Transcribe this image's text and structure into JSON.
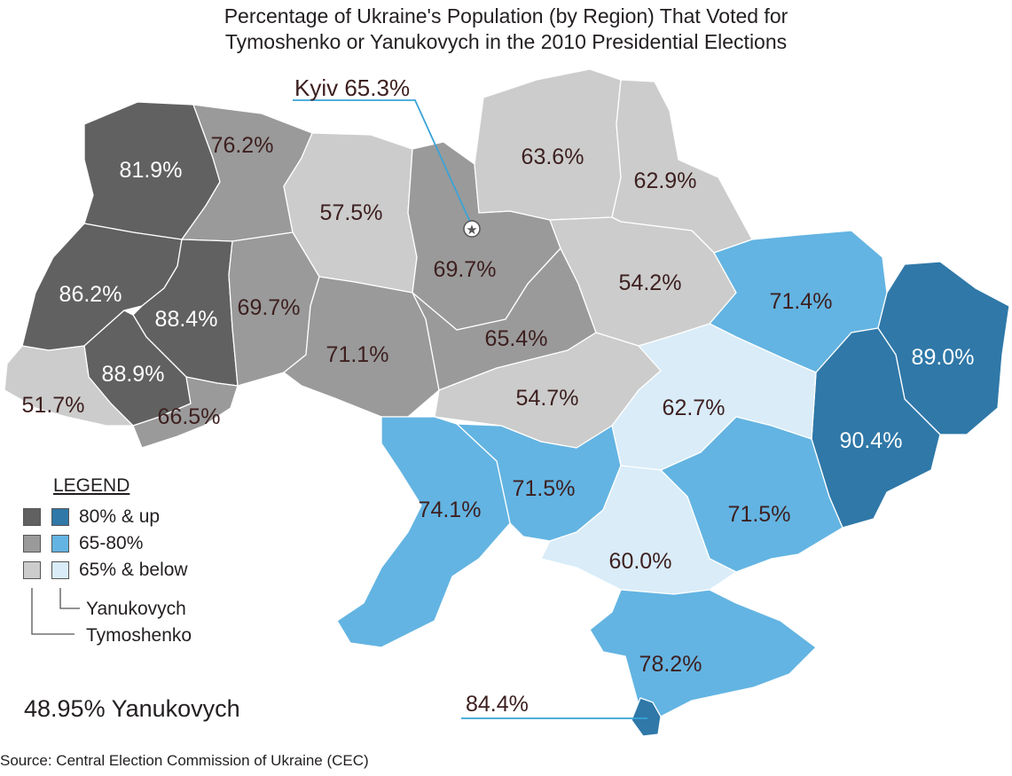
{
  "title_line1": "Percentage of Ukraine's Population (by Region) That Voted for",
  "title_line2": "Tymoshenko or Yanukovych in the 2010 Presidential Elections",
  "colors": {
    "tymoshenko_high": "#616161",
    "tymoshenko_mid": "#9a9a9a",
    "tymoshenko_low": "#cccccc",
    "yanukovych_high": "#2f78a8",
    "yanukovych_mid": "#63b4e2",
    "yanukovych_low": "#d9ecf8",
    "callout_line": "#3aa3d6"
  },
  "regions": [
    {
      "id": "volyn",
      "candidate": "Tymoshenko",
      "value": "81.9%"
    },
    {
      "id": "rivne",
      "candidate": "Tymoshenko",
      "value": "76.2%"
    },
    {
      "id": "zhytomyr",
      "candidate": "Tymoshenko",
      "value": "57.5%"
    },
    {
      "id": "kyiv-oblast",
      "candidate": "Tymoshenko",
      "value": "69.7%"
    },
    {
      "id": "chernihiv",
      "candidate": "Tymoshenko",
      "value": "63.6%"
    },
    {
      "id": "sumy",
      "candidate": "Tymoshenko",
      "value": "62.9%"
    },
    {
      "id": "lviv",
      "candidate": "Tymoshenko",
      "value": "86.2%"
    },
    {
      "id": "ternopil",
      "candidate": "Tymoshenko",
      "value": "88.4%"
    },
    {
      "id": "ivano-frankivsk",
      "candidate": "Tymoshenko",
      "value": "88.9%"
    },
    {
      "id": "khmelnytskyi",
      "candidate": "Tymoshenko",
      "value": "69.7%"
    },
    {
      "id": "vinnytsia",
      "candidate": "Tymoshenko",
      "value": "71.1%"
    },
    {
      "id": "cherkasy",
      "candidate": "Tymoshenko",
      "value": "65.4%"
    },
    {
      "id": "poltava",
      "candidate": "Tymoshenko",
      "value": "54.2%"
    },
    {
      "id": "zakarpattia",
      "candidate": "Tymoshenko",
      "value": "51.7%"
    },
    {
      "id": "chernivtsi",
      "candidate": "Tymoshenko",
      "value": "66.5%"
    },
    {
      "id": "kirovohrad",
      "candidate": "Tymoshenko",
      "value": "54.7%"
    },
    {
      "id": "kharkiv",
      "candidate": "Yanukovych",
      "value": "71.4%"
    },
    {
      "id": "luhansk",
      "candidate": "Yanukovych",
      "value": "89.0%"
    },
    {
      "id": "donetsk",
      "candidate": "Yanukovych",
      "value": "90.4%"
    },
    {
      "id": "dnipropetrovsk",
      "candidate": "Yanukovych",
      "value": "62.7%"
    },
    {
      "id": "zaporizhzhia",
      "candidate": "Yanukovych",
      "value": "71.5%"
    },
    {
      "id": "mykolaiv",
      "candidate": "Yanukovych",
      "value": "71.5%"
    },
    {
      "id": "odesa",
      "candidate": "Yanukovych",
      "value": "74.1%"
    },
    {
      "id": "kherson",
      "candidate": "Yanukovych",
      "value": "60.0%"
    },
    {
      "id": "crimea",
      "candidate": "Yanukovych",
      "value": "78.2%"
    }
  ],
  "callouts": {
    "kyiv": "Kyiv 65.3%",
    "sevastopol": "84.4%"
  },
  "legend": {
    "title": "LEGEND",
    "rows": [
      "80% & up",
      "65-80%",
      "65% & below"
    ],
    "yanukovych_label": "Yanukovych",
    "tymoshenko_label": "Tymoshenko"
  },
  "result": "48.95% Yanukovych",
  "source": "Source: Central Election Commission of Ukraine (CEC)"
}
